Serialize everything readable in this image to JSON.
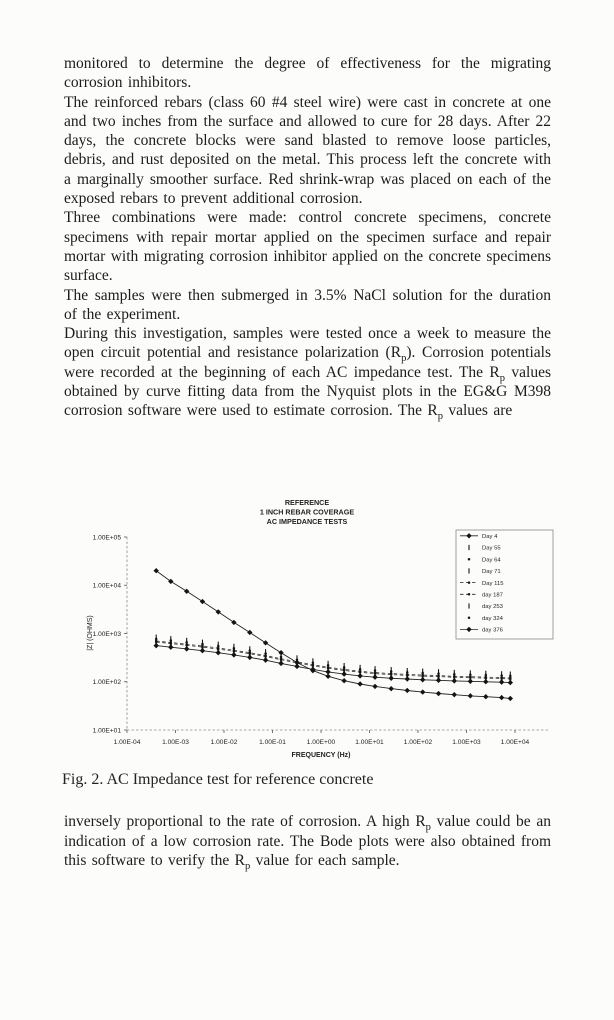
{
  "page": {
    "paragraphs": [
      "monitored to determine the degree of effectiveness for the migrating corrosion inhibitors.",
      "The reinforced rebars (class 60 #4 steel wire) were cast in concrete at one and two inches from the surface and allowed to cure for 28 days. After 22 days, the concrete blocks were sand blasted to remove loose particles, debris, and rust deposited on the metal.  This process left the concrete with a marginally smoother surface.  Red shrink-wrap was placed on each of the exposed rebars to prevent additional corrosion.",
      "Three combinations were made: control concrete specimens, concrete specimens with repair mortar applied on the specimen surface and repair mortar with migrating corrosion inhibitor applied on the concrete specimens surface.",
      "The samples were then submerged in 3.5% NaCl solution for the duration of the experiment.",
      "During this investigation, samples were tested once a week to measure the open circuit potential and resistance polarization (R~p~).  Corrosion potentials were recorded at the beginning of each AC impedance test. The R~p~ values obtained by curve fitting data from the Nyquist plots in the EG&G M398 corrosion software were used to estimate corrosion. The R~p~ values are"
    ],
    "figure_caption": "Fig. 2. AC Impedance test for reference concrete",
    "closing_paragraph": "inversely proportional to the rate of corrosion. A high R~p~ value could be an indication of a low corrosion rate. The Bode plots were also obtained from this software to verify the R~p~ value for each sample."
  },
  "chart_data": {
    "type": "line",
    "title_lines": [
      "REFERENCE",
      "1 INCH REBAR COVERAGE",
      "AC IMPEDANCE TESTS"
    ],
    "xlabel": "FREQUENCY (Hz)",
    "ylabel": "|Z| (OHMS)",
    "x_scale": "log",
    "y_scale": "log",
    "xlim": [
      0.0001,
      10000
    ],
    "ylim": [
      10,
      100000
    ],
    "grid": false,
    "legend_position": "upper right",
    "x_ticks": [
      {
        "label": "1.00E-04",
        "value": 0.0001
      },
      {
        "label": "1.00E-03",
        "value": 0.001
      },
      {
        "label": "1.00E-02",
        "value": 0.01
      },
      {
        "label": "1.00E-01",
        "value": 0.1
      },
      {
        "label": "1.00E+00",
        "value": 1
      },
      {
        "label": "1.00E+01",
        "value": 10
      },
      {
        "label": "1.00E+02",
        "value": 100
      },
      {
        "label": "1.00E+03",
        "value": 1000
      },
      {
        "label": "1.00E+04",
        "value": 10000
      }
    ],
    "y_ticks": [
      {
        "label": "1.00E+05",
        "value": 100000
      },
      {
        "label": "1.00E+04",
        "value": 10000
      },
      {
        "label": "1.00E+03",
        "value": 1000
      },
      {
        "label": "1.00E+02",
        "value": 100
      },
      {
        "label": "1.00E+01",
        "value": 10
      }
    ],
    "x": [
      0.0004,
      0.0008,
      0.0017,
      0.0036,
      0.0076,
      0.016,
      0.034,
      0.072,
      0.15,
      0.32,
      0.68,
      1.4,
      3,
      6.4,
      13,
      28,
      60,
      125,
      265,
      560,
      1200,
      2500,
      5300,
      8000
    ],
    "series": [
      {
        "name": "Day 4",
        "marker": "diamond",
        "line": "solid",
        "values": [
          20000,
          12000,
          7500,
          4600,
          2800,
          1700,
          1050,
          640,
          400,
          250,
          170,
          130,
          105,
          90,
          80,
          72,
          66,
          61,
          57,
          54,
          51,
          49,
          47,
          45
        ]
      },
      {
        "name": "Day 55",
        "marker": "vtick",
        "line": "none",
        "values": [
          840,
          780,
          720,
          660,
          600,
          540,
          480,
          420,
          360,
          312,
          270,
          240,
          216,
          198,
          186,
          178,
          170,
          166,
          161,
          156,
          152,
          150,
          146,
          144
        ]
      },
      {
        "name": "Day 64",
        "marker": "dot",
        "line": "none",
        "values": [
          770,
          715,
          660,
          605,
          550,
          495,
          440,
          385,
          330,
          286,
          248,
          220,
          198,
          182,
          171,
          163,
          156,
          152,
          147,
          143,
          140,
          138,
          134,
          132
        ]
      },
      {
        "name": "Day 71",
        "marker": "vtick",
        "line": "none",
        "values": [
          735,
          683,
          630,
          578,
          525,
          473,
          420,
          368,
          315,
          273,
          236,
          210,
          189,
          173,
          163,
          155,
          149,
          145,
          141,
          137,
          133,
          131,
          128,
          126
        ]
      },
      {
        "name": "Day 115",
        "marker": "dot",
        "line": "dashed",
        "values": [
          700,
          650,
          600,
          550,
          500,
          450,
          400,
          350,
          300,
          260,
          225,
          200,
          180,
          165,
          155,
          148,
          142,
          138,
          134,
          130,
          127,
          125,
          122,
          120
        ]
      },
      {
        "name": "day 187",
        "marker": "dot",
        "line": "dashed",
        "values": [
          665,
          618,
          570,
          523,
          475,
          428,
          380,
          333,
          285,
          247,
          214,
          190,
          171,
          157,
          147,
          141,
          135,
          131,
          127,
          124,
          121,
          119,
          116,
          114
        ]
      },
      {
        "name": "day 253",
        "marker": "vtick",
        "line": "none",
        "values": [
          630,
          585,
          540,
          495,
          450,
          405,
          360,
          315,
          270,
          234,
          203,
          180,
          162,
          149,
          140,
          133,
          128,
          124,
          121,
          117,
          114,
          113,
          110,
          108
        ]
      },
      {
        "name": "day 324",
        "marker": "dot",
        "line": "none",
        "values": [
          595,
          553,
          510,
          468,
          425,
          383,
          340,
          298,
          255,
          221,
          191,
          170,
          153,
          140,
          132,
          126,
          121,
          117,
          114,
          111,
          108,
          106,
          104,
          102
        ]
      },
      {
        "name": "day 376",
        "marker": "diamond",
        "line": "solid",
        "values": [
          560,
          520,
          480,
          440,
          400,
          360,
          320,
          280,
          240,
          208,
          180,
          160,
          144,
          132,
          124,
          118,
          114,
          110,
          107,
          104,
          102,
          100,
          98,
          96
        ]
      }
    ]
  }
}
